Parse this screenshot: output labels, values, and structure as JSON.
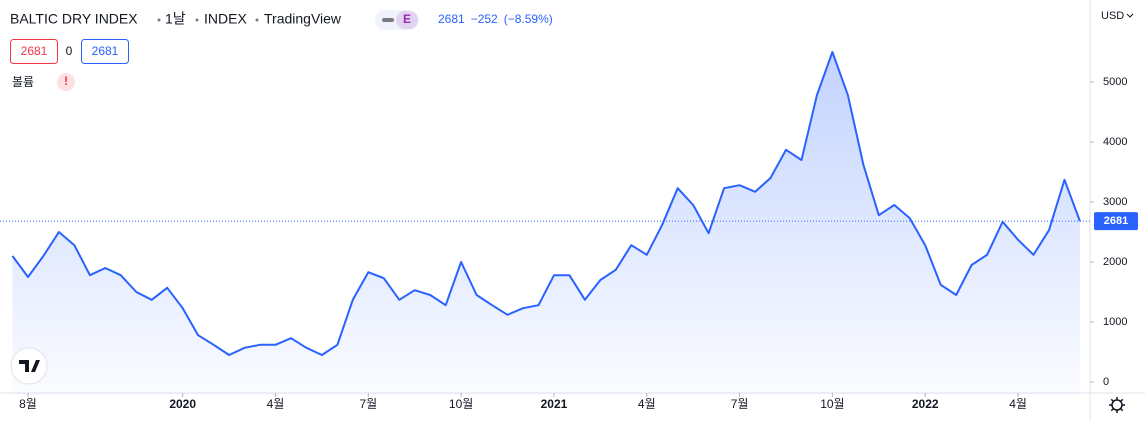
{
  "header": {
    "symbol": "BALTIC DRY INDEX",
    "interval": "1날",
    "exchange": "INDEX",
    "source": "TradingView",
    "badge": "E",
    "last": "2681",
    "change": "−252",
    "change_pct": "(−8.59%)"
  },
  "trade": {
    "sell": "2681",
    "spread": "0",
    "buy": "2681"
  },
  "volume": {
    "label": "볼륨",
    "alert": "!"
  },
  "currency": "USD",
  "chart_data": {
    "type": "area",
    "categories": [
      null,
      "8월",
      null,
      null,
      null,
      null,
      null,
      null,
      null,
      null,
      null,
      "2020",
      null,
      null,
      null,
      null,
      null,
      "4월",
      null,
      null,
      null,
      null,
      null,
      "7월",
      null,
      null,
      null,
      null,
      null,
      "10월",
      null,
      null,
      null,
      null,
      null,
      "2021",
      null,
      null,
      null,
      null,
      null,
      "4월",
      null,
      null,
      null,
      null,
      null,
      "7월",
      null,
      null,
      null,
      null,
      null,
      "10월",
      null,
      null,
      null,
      null,
      null,
      "2022",
      null,
      null,
      null,
      null,
      null,
      "4월",
      null,
      null,
      null,
      null
    ],
    "series": [
      {
        "name": "BALTIC DRY INDEX",
        "color": "#2962ff",
        "values": [
          2100,
          1750,
          2100,
          2500,
          2280,
          1780,
          1900,
          1780,
          1500,
          1370,
          1570,
          1230,
          780,
          620,
          450,
          570,
          620,
          620,
          730,
          570,
          450,
          620,
          1370,
          1830,
          1730,
          1370,
          1530,
          1450,
          1280,
          2000,
          1450,
          1280,
          1120,
          1230,
          1280,
          1780,
          1780,
          1370,
          1700,
          1870,
          2280,
          2120,
          2620,
          3230,
          2950,
          2480,
          3230,
          3280,
          3170,
          3400,
          3870,
          3700,
          4780,
          5500,
          4780,
          3620,
          2780,
          2950,
          2730,
          2280,
          1620,
          1450,
          1950,
          2120,
          2670,
          2370,
          2120,
          2530,
          3370,
          2681
        ]
      }
    ],
    "ylim": [
      -217,
      6367
    ],
    "yticks": [
      0,
      1000,
      2000,
      3000,
      4000,
      5000
    ],
    "grid": false
  }
}
